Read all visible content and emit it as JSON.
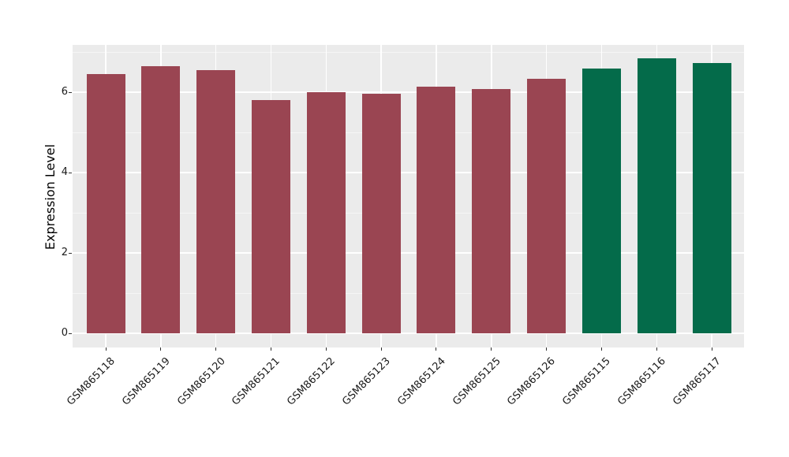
{
  "chart_data": {
    "type": "bar",
    "title": "",
    "xlabel": "",
    "ylabel": "Expression Level",
    "categories": [
      "GSM865118",
      "GSM865119",
      "GSM865120",
      "GSM865121",
      "GSM865122",
      "GSM865123",
      "GSM865124",
      "GSM865125",
      "GSM865126",
      "GSM865115",
      "GSM865116",
      "GSM865117"
    ],
    "values": [
      6.46,
      6.65,
      6.54,
      5.8,
      6.0,
      5.97,
      6.14,
      6.07,
      6.33,
      6.58,
      6.84,
      6.73
    ],
    "bar_colors": [
      "#9a4552",
      "#9a4552",
      "#9a4552",
      "#9a4552",
      "#9a4552",
      "#9a4552",
      "#9a4552",
      "#9a4552",
      "#9a4552",
      "#046b4a",
      "#046b4a",
      "#046b4a"
    ],
    "group_colors": {
      "maroon": "#9a4552",
      "green": "#046b4a"
    },
    "ylim": [
      -0.35,
      7.18
    ],
    "yticks_major": [
      0,
      2,
      4,
      6
    ],
    "yticks_minor": [
      1,
      3,
      5,
      7
    ],
    "ytick_labels": [
      "0",
      "2",
      "4",
      "6"
    ],
    "x_tick_rotation": 45,
    "grid": "on",
    "legend_position": "none",
    "panel_background": "#ebebeb",
    "grid_color_major": "#ffffff",
    "grid_color_minor": "#f5f5f5"
  }
}
